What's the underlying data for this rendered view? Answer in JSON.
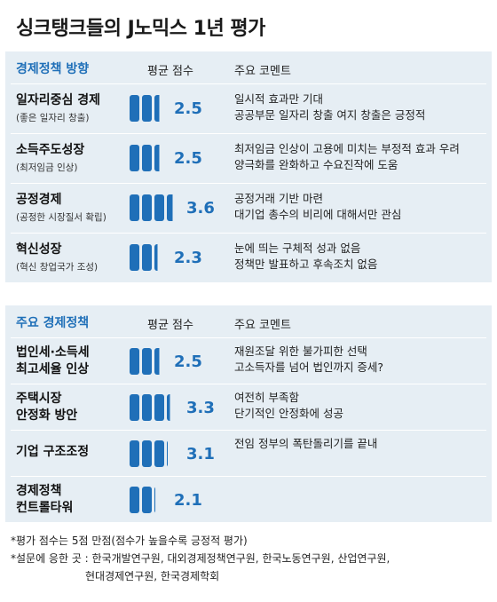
{
  "title": "싱크탱크들의 J노믹스 1년 평가",
  "section1": {
    "heading": "경제정책 방향",
    "score_header": "평균 점수",
    "comment_header": "주요 코멘트",
    "rows": [
      {
        "name": "일자리중심 경제",
        "sub": "(좋은 일자리 창출)",
        "score": 2.5,
        "score_label": "2.5",
        "comment1": "일시적 효과만 기대",
        "comment2": "공공부문 일자리 창출 여지 창출은 긍정적"
      },
      {
        "name": "소득주도성장",
        "sub": "(최저임금 인상)",
        "score": 2.5,
        "score_label": "2.5",
        "comment1": "최저임금 인상이 고용에 미치는 부정적 효과 우려",
        "comment2": "양극화를 완화하고 수요진작에 도움"
      },
      {
        "name": "공정경제",
        "sub": "(공정한 시장질서 확립)",
        "score": 3.6,
        "score_label": "3.6",
        "comment1": "공정거래 기반 마련",
        "comment2": "대기업 총수의 비리에 대해서만 관심"
      },
      {
        "name": "혁신성장",
        "sub": "(혁신 창업국가 조성)",
        "score": 2.3,
        "score_label": "2.3",
        "comment1": "눈에 띄는 구체적 성과 없음",
        "comment2": "정책만 발표하고 후속조치 없음"
      }
    ]
  },
  "section2": {
    "heading": "주요 경제정책",
    "score_header": "평균 점수",
    "comment_header": "주요 코멘트",
    "rows": [
      {
        "name1": "법인세·소득세",
        "name2": "최고세율 인상",
        "score": 2.5,
        "score_label": "2.5",
        "comment1": "재원조달 위한 불가피한 선택",
        "comment2": "고소득자를 넘어 법인까지 증세?"
      },
      {
        "name1": "주택시장",
        "name2": "안정화 방안",
        "score": 3.3,
        "score_label": "3.3",
        "comment1": "여전히 부족함",
        "comment2": "단기적인 안정화에 성공"
      },
      {
        "name1": "기업 구조조정",
        "name2": "",
        "score": 3.1,
        "score_label": "3.1",
        "comment1": "전임 정부의 폭탄돌리기를 끝내",
        "comment2": ""
      },
      {
        "name1": "경제정책",
        "name2": "컨트롤타워",
        "score": 2.1,
        "score_label": "2.1",
        "comment1": "",
        "comment2": ""
      }
    ]
  },
  "footnotes": {
    "line1": "*평가 점수는 5점 만점(점수가 높을수록 긍정적 평가)",
    "line2": "*설문에 응한 곳 : 한국개발연구원, 대외경제정책연구원, 한국노동연구원, 산업연구원,",
    "line3": "현대경제연구원, 한국경제학회"
  },
  "colors": {
    "accent": "#1f6fb8",
    "panel": "#e6eef4"
  }
}
